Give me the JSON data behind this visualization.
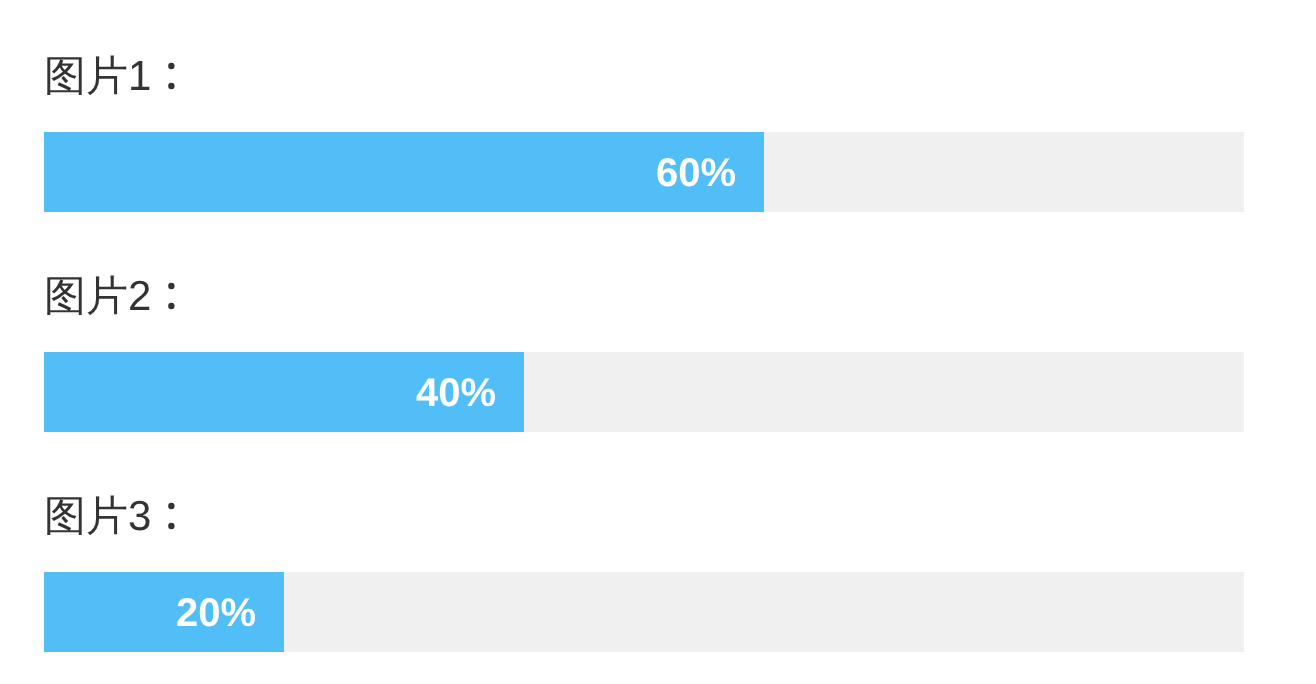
{
  "chart_data": {
    "type": "bar",
    "orientation": "horizontal",
    "categories": [
      "图片1",
      "图片2",
      "图片3"
    ],
    "values": [
      60,
      40,
      20
    ],
    "value_labels": [
      "60%",
      "40%",
      "20%"
    ],
    "color": "#52bef8",
    "xlim": [
      0,
      100
    ]
  }
}
